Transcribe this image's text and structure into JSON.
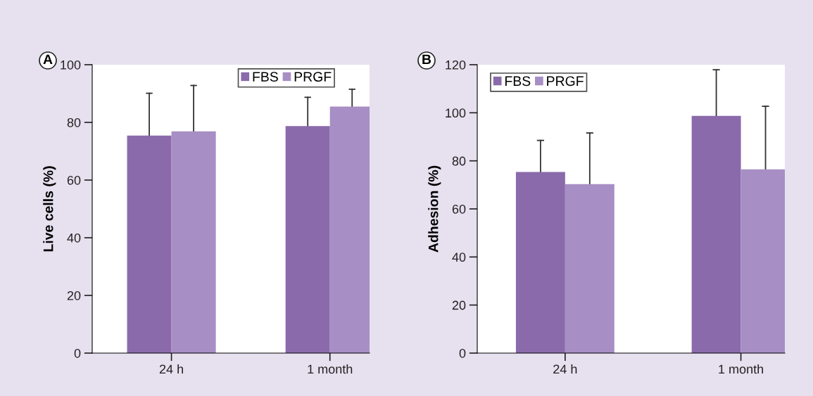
{
  "chart_data": [
    {
      "type": "bar",
      "annotations": [
        "A"
      ],
      "ylabel": "Live cells (%)",
      "categories": [
        "24 h",
        "1 month"
      ],
      "ylim": [
        0,
        100
      ],
      "yticks": [
        0,
        20,
        40,
        60,
        80,
        100
      ],
      "legend": "top",
      "grid": false,
      "series": [
        {
          "name": "FBS",
          "color": "#8a6aab",
          "values": [
            75.4,
            78.7
          ],
          "errors": [
            [
              75.4,
              90.1
            ],
            [
              78.7,
              88.7
            ]
          ]
        },
        {
          "name": "PRGF",
          "color": "#a78ec4",
          "values": [
            76.9,
            85.5
          ],
          "errors": [
            [
              76.9,
              92.8
            ],
            [
              85.5,
              91.5
            ]
          ]
        }
      ]
    },
    {
      "type": "bar",
      "annotations": [
        "B"
      ],
      "ylabel": "Adhesion (%)",
      "categories": [
        "24 h",
        "1 month"
      ],
      "ylim": [
        0,
        120
      ],
      "yticks": [
        0,
        20,
        40,
        60,
        80,
        100,
        120
      ],
      "legend": "top left",
      "grid": false,
      "series": [
        {
          "name": "FBS",
          "color": "#8a6aab",
          "values": [
            75.4,
            98.7
          ],
          "errors": [
            [
              75.4,
              88.5
            ],
            [
              98.7,
              117.9
            ]
          ]
        },
        {
          "name": "PRGF",
          "color": "#a78ec4",
          "values": [
            70.3,
            76.5
          ],
          "errors": [
            [
              70.3,
              91.6
            ],
            [
              76.5,
              102.7
            ]
          ]
        }
      ]
    }
  ]
}
